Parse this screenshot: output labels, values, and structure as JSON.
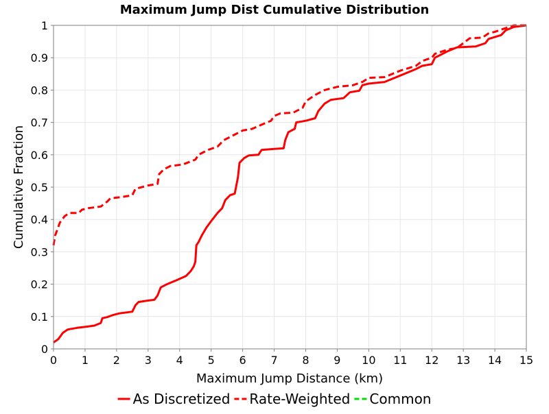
{
  "chart_data": {
    "type": "line",
    "title": "Maximum Jump Dist Cumulative Distribution",
    "xlabel": "Maximum Jump Distance (km)",
    "ylabel": "Cumulative Fraction",
    "xlim": [
      0,
      15
    ],
    "ylim": [
      0,
      1
    ],
    "grid": true,
    "legend_position": "bottom",
    "x_ticks": [
      "0",
      "1",
      "2",
      "3",
      "4",
      "5",
      "6",
      "7",
      "8",
      "9",
      "10",
      "11",
      "12",
      "13",
      "14",
      "15"
    ],
    "y_ticks": [
      "0",
      "0.1",
      "0.2",
      "0.3",
      "0.4",
      "0.5",
      "0.6",
      "0.7",
      "0.8",
      "0.9",
      "1"
    ],
    "series": [
      {
        "name": "As Discretized",
        "color": "#ff0000",
        "dash": "solid",
        "points": [
          [
            0,
            0.02
          ],
          [
            0.15,
            0.03
          ],
          [
            0.3,
            0.05
          ],
          [
            0.45,
            0.06
          ],
          [
            0.75,
            0.065
          ],
          [
            1.0,
            0.068
          ],
          [
            1.3,
            0.072
          ],
          [
            1.5,
            0.08
          ],
          [
            1.55,
            0.095
          ],
          [
            1.7,
            0.098
          ],
          [
            1.9,
            0.105
          ],
          [
            2.1,
            0.11
          ],
          [
            2.5,
            0.115
          ],
          [
            2.6,
            0.135
          ],
          [
            2.7,
            0.145
          ],
          [
            2.9,
            0.148
          ],
          [
            3.2,
            0.152
          ],
          [
            3.3,
            0.165
          ],
          [
            3.4,
            0.19
          ],
          [
            3.6,
            0.2
          ],
          [
            3.9,
            0.212
          ],
          [
            4.2,
            0.225
          ],
          [
            4.35,
            0.24
          ],
          [
            4.45,
            0.255
          ],
          [
            4.5,
            0.27
          ],
          [
            4.53,
            0.32
          ],
          [
            4.6,
            0.33
          ],
          [
            4.7,
            0.35
          ],
          [
            4.85,
            0.375
          ],
          [
            5.0,
            0.395
          ],
          [
            5.2,
            0.42
          ],
          [
            5.35,
            0.435
          ],
          [
            5.45,
            0.46
          ],
          [
            5.6,
            0.475
          ],
          [
            5.75,
            0.48
          ],
          [
            5.85,
            0.53
          ],
          [
            5.9,
            0.575
          ],
          [
            6.05,
            0.59
          ],
          [
            6.2,
            0.598
          ],
          [
            6.5,
            0.6
          ],
          [
            6.6,
            0.615
          ],
          [
            7.0,
            0.618
          ],
          [
            7.3,
            0.62
          ],
          [
            7.35,
            0.645
          ],
          [
            7.45,
            0.67
          ],
          [
            7.65,
            0.68
          ],
          [
            7.7,
            0.7
          ],
          [
            8.0,
            0.705
          ],
          [
            8.3,
            0.713
          ],
          [
            8.4,
            0.735
          ],
          [
            8.6,
            0.758
          ],
          [
            8.8,
            0.77
          ],
          [
            9.2,
            0.775
          ],
          [
            9.4,
            0.793
          ],
          [
            9.7,
            0.798
          ],
          [
            9.8,
            0.815
          ],
          [
            10.0,
            0.82
          ],
          [
            10.5,
            0.825
          ],
          [
            11.0,
            0.845
          ],
          [
            11.5,
            0.865
          ],
          [
            11.7,
            0.875
          ],
          [
            12.0,
            0.88
          ],
          [
            12.1,
            0.9
          ],
          [
            12.5,
            0.92
          ],
          [
            12.8,
            0.932
          ],
          [
            13.4,
            0.935
          ],
          [
            13.7,
            0.945
          ],
          [
            13.8,
            0.958
          ],
          [
            14.2,
            0.97
          ],
          [
            14.35,
            0.985
          ],
          [
            14.6,
            0.995
          ],
          [
            15.0,
            1.0
          ]
        ]
      },
      {
        "name": "Rate-Weighted",
        "color": "#ff0000",
        "dash": "dashed",
        "points": [
          [
            0,
            0.32
          ],
          [
            0.05,
            0.35
          ],
          [
            0.2,
            0.39
          ],
          [
            0.35,
            0.41
          ],
          [
            0.5,
            0.42
          ],
          [
            0.8,
            0.42
          ],
          [
            0.9,
            0.43
          ],
          [
            1.1,
            0.435
          ],
          [
            1.5,
            0.44
          ],
          [
            1.7,
            0.455
          ],
          [
            1.8,
            0.465
          ],
          [
            2.2,
            0.47
          ],
          [
            2.5,
            0.475
          ],
          [
            2.6,
            0.495
          ],
          [
            3.0,
            0.505
          ],
          [
            3.3,
            0.51
          ],
          [
            3.35,
            0.54
          ],
          [
            3.5,
            0.555
          ],
          [
            3.7,
            0.565
          ],
          [
            4.1,
            0.57
          ],
          [
            4.5,
            0.585
          ],
          [
            4.6,
            0.6
          ],
          [
            4.9,
            0.615
          ],
          [
            5.2,
            0.625
          ],
          [
            5.4,
            0.645
          ],
          [
            5.7,
            0.66
          ],
          [
            6.0,
            0.675
          ],
          [
            6.3,
            0.68
          ],
          [
            6.6,
            0.693
          ],
          [
            6.9,
            0.705
          ],
          [
            7.0,
            0.72
          ],
          [
            7.2,
            0.728
          ],
          [
            7.6,
            0.73
          ],
          [
            7.9,
            0.745
          ],
          [
            8.0,
            0.765
          ],
          [
            8.3,
            0.785
          ],
          [
            8.6,
            0.8
          ],
          [
            9.0,
            0.81
          ],
          [
            9.5,
            0.815
          ],
          [
            9.8,
            0.825
          ],
          [
            10.0,
            0.838
          ],
          [
            10.5,
            0.84
          ],
          [
            11.0,
            0.86
          ],
          [
            11.5,
            0.875
          ],
          [
            11.7,
            0.89
          ],
          [
            12.0,
            0.9
          ],
          [
            12.1,
            0.912
          ],
          [
            12.5,
            0.925
          ],
          [
            12.8,
            0.93
          ],
          [
            13.0,
            0.945
          ],
          [
            13.2,
            0.96
          ],
          [
            13.6,
            0.962
          ],
          [
            13.8,
            0.975
          ],
          [
            14.0,
            0.98
          ],
          [
            14.3,
            0.99
          ],
          [
            14.6,
            1.0
          ],
          [
            15.0,
            1.0
          ]
        ]
      },
      {
        "name": "Common",
        "color": "#00dd00",
        "dash": "dashed",
        "points": []
      }
    ]
  }
}
